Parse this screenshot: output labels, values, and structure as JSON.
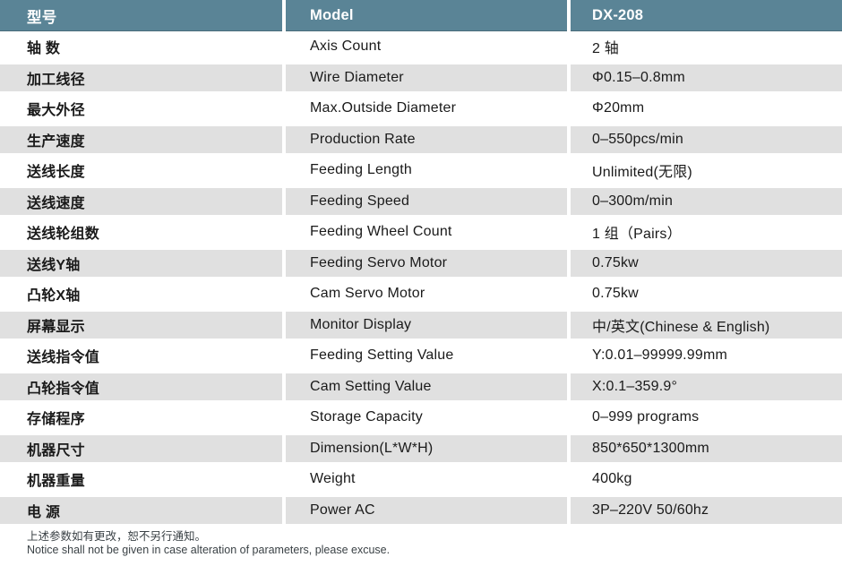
{
  "header": {
    "col1": "型号",
    "col2": "Model",
    "col3": "DX-208"
  },
  "rows": [
    {
      "cn": "轴 数",
      "en": "Axis Count",
      "value": "2 轴"
    },
    {
      "cn": "加工线径",
      "en": "Wire Diameter",
      "value": "Φ0.15–0.8mm"
    },
    {
      "cn": "最大外径",
      "en": "Max.Outside Diameter",
      "value": "Φ20mm"
    },
    {
      "cn": "生产速度",
      "en": "Production Rate",
      "value": "0–550pcs/min"
    },
    {
      "cn": "送线长度",
      "en": "Feeding Length",
      "value": "Unlimited(无限)"
    },
    {
      "cn": "送线速度",
      "en": "Feeding Speed",
      "value": "0–300m/min"
    },
    {
      "cn": "送线轮组数",
      "en": "Feeding Wheel Count",
      "value": "1 组（Pairs）"
    },
    {
      "cn": "送线Y轴",
      "en": "Feeding Servo Motor",
      "value": "0.75kw"
    },
    {
      "cn": "凸轮X轴",
      "en": "Cam Servo Motor",
      "value": "0.75kw"
    },
    {
      "cn": "屏幕显示",
      "en": "Monitor Display",
      "value": "中/英文(Chinese & English)"
    },
    {
      "cn": "送线指令值",
      "en": "Feeding Setting Value",
      "value": "Y:0.01–99999.99mm"
    },
    {
      "cn": "凸轮指令值",
      "en": "Cam Setting Value",
      "value": "X:0.1–359.9°"
    },
    {
      "cn": "存储程序",
      "en": "Storage Capacity",
      "value": "0–999 programs"
    },
    {
      "cn": "机器尺寸",
      "en": "Dimension(L*W*H)",
      "value": "850*650*1300mm"
    },
    {
      "cn": "机器重量",
      "en": "Weight",
      "value": "400kg"
    },
    {
      "cn": "电 源",
      "en": "Power AC",
      "value": "3P–220V 50/60hz"
    }
  ],
  "footer": {
    "line1": "上述参数如有更改，恕不另行通知。",
    "line2": "Notice shall not be given in case alteration of parameters, please excuse."
  },
  "colors": {
    "header_bg": "#5a8496",
    "row_alt_bg": "#e0e0e0",
    "text_color": "#1a1a1a",
    "header_text": "#ffffff",
    "footer_text": "#3b4246"
  }
}
